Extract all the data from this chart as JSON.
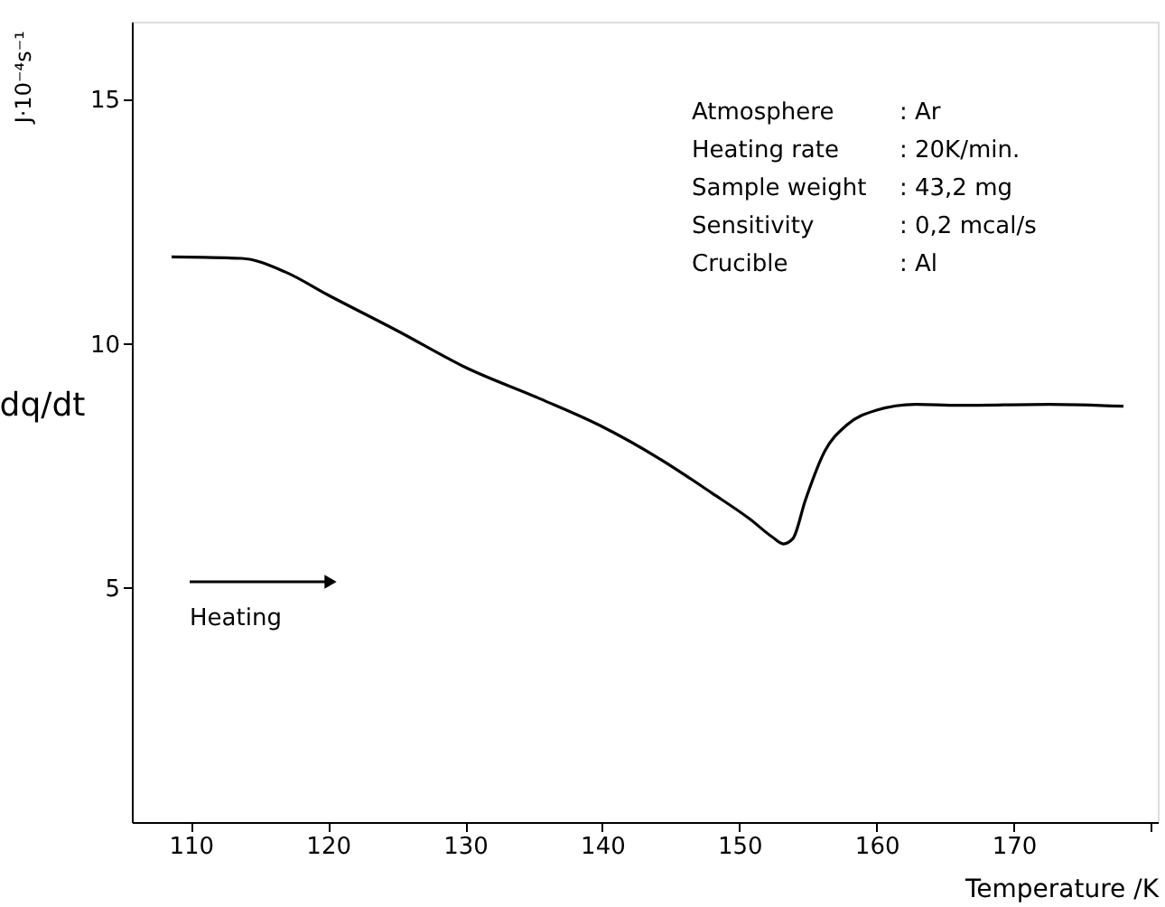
{
  "chart_data": {
    "type": "line",
    "xlabel": "Temperature /K",
    "ylabel": "dq/dt",
    "x": [
      108.6,
      113.7,
      116.9,
      120.0,
      125.1,
      130.0,
      135.5,
      139.8,
      144.2,
      148.0,
      150.8,
      152.4,
      153.2,
      153.9,
      154.8,
      156.2,
      157.8,
      160.0,
      162.8,
      166.0,
      172.6,
      178.0
    ],
    "series": [
      {
        "color": "#000000",
        "values": [
          11.78,
          11.75,
          11.47,
          11.0,
          10.26,
          9.52,
          8.87,
          8.33,
          7.64,
          6.94,
          6.4,
          6.04,
          5.9,
          6.01,
          6.79,
          7.79,
          8.33,
          8.64,
          8.76,
          8.74,
          8.76,
          8.72
        ]
      }
    ],
    "xlim": [
      105.7,
      180.5
    ],
    "ylim": [
      0.2,
      16.6
    ],
    "xticks": [
      110,
      120,
      130,
      140,
      150,
      160,
      170,
      {
        "value": 180,
        "label": null
      }
    ],
    "yticks": [
      5,
      10,
      15
    ],
    "grid": false,
    "marker": "none",
    "line_style": "solid",
    "annotations": [
      "J·10⁻⁴s⁻¹",
      "Atmosphere : Ar",
      "Heating rate : 20K/min.",
      "Sample weight : 43,2 mg",
      "Sensitivity : 0,2 mcal/s",
      "Crucible : Al",
      "Heating"
    ]
  }
}
